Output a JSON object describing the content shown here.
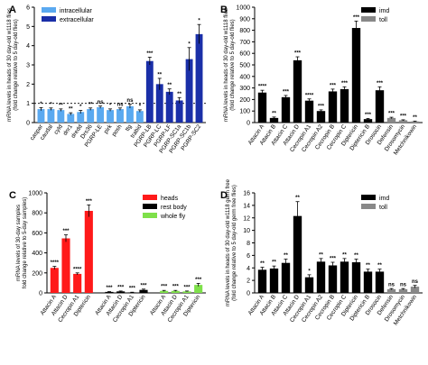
{
  "chart_data": [
    {
      "panel": "A",
      "type": "bar",
      "ylabel": "mRNA levels in heads of 30 day-old w1118 flies",
      "ylabel2": "(fold change relative to 5 day-old flies)",
      "ylim": [
        0,
        6
      ],
      "yticks": [
        0,
        1,
        2,
        3,
        4,
        5,
        6
      ],
      "reference_line": 1,
      "legend": {
        "position": "top-left",
        "entries": [
          "intracellular",
          "extracellular"
        ]
      },
      "colors": {
        "intracellular": "#5aa9f0",
        "extracellular": "#1a2fa8"
      },
      "categories": [
        "caspar",
        "caudal",
        "cyld",
        "dnr1",
        "dredd",
        "Drs36",
        "PGRP-LE",
        "pirk",
        "posh",
        "ttg",
        "trabid",
        "PGRP-LB",
        "PGRP-LC",
        "PGRP-LF",
        "PGRP-SC1a",
        "PGRP-SC1b",
        "PGRP-SC2"
      ],
      "groups": [
        "intracellular",
        "intracellular",
        "intracellular",
        "intracellular",
        "intracellular",
        "intracellular",
        "intracellular",
        "intracellular",
        "intracellular",
        "intracellular",
        "intracellular",
        "extracellular",
        "extracellular",
        "extracellular",
        "extracellular",
        "extracellular",
        "extracellular"
      ],
      "values": [
        0.7,
        0.7,
        0.65,
        0.45,
        0.55,
        0.7,
        0.8,
        0.65,
        0.7,
        0.85,
        0.6,
        3.2,
        2.0,
        1.6,
        1.15,
        3.3,
        4.6
      ],
      "errors": [
        0.08,
        0.06,
        0.06,
        0.06,
        0.08,
        0.06,
        0.06,
        0.06,
        0.06,
        0.1,
        0.06,
        0.2,
        0.3,
        0.15,
        0.15,
        0.6,
        0.5
      ],
      "annotations": [
        "*",
        "*",
        "**",
        "**",
        "*",
        "**",
        "ns",
        "*",
        "ns",
        "ns",
        "*",
        "***",
        "**",
        "**",
        "**",
        "*",
        "*"
      ]
    },
    {
      "panel": "B",
      "type": "bar",
      "ylabel": "mRNA levels in heads of 30 day-old w1118 flies",
      "ylabel2": "(fold change relative to 5 day-old flies)",
      "ylim": [
        0,
        1000
      ],
      "yticks": [
        0,
        100,
        200,
        300,
        400,
        500,
        600,
        700,
        800,
        900,
        1000
      ],
      "legend": {
        "position": "top-right",
        "entries": [
          "imd",
          "toll"
        ]
      },
      "colors": {
        "imd": "#000000",
        "toll": "#888888"
      },
      "categories": [
        "Attacin A",
        "Attacin B",
        "Attacin C",
        "Attacin D",
        "Cecropin A1",
        "Cecropin A2",
        "Cecropin B",
        "Cecropin C",
        "Diptericin",
        "Diptericin B",
        "Drosocin",
        "Defensin",
        "Drosomycin",
        "Metchnikowin"
      ],
      "groups": [
        "imd",
        "imd",
        "imd",
        "imd",
        "imd",
        "imd",
        "imd",
        "imd",
        "imd",
        "imd",
        "imd",
        "toll",
        "toll",
        "toll"
      ],
      "values": [
        260,
        40,
        220,
        540,
        190,
        100,
        270,
        290,
        820,
        30,
        280,
        40,
        20,
        10
      ],
      "errors": [
        20,
        8,
        15,
        30,
        15,
        10,
        20,
        20,
        60,
        6,
        30,
        6,
        4,
        3
      ],
      "annotations": [
        "****",
        "**",
        "***",
        "***",
        "****",
        "***",
        "***",
        "***",
        "***",
        "***",
        "***",
        "***",
        "***",
        "**"
      ]
    },
    {
      "panel": "C",
      "type": "bar",
      "ylabel": "mRNA levels of 30-day samples",
      "ylabel2": "fold change relative to 5-day samples)",
      "ylim": [
        0,
        1000
      ],
      "yticks": [
        0,
        200,
        400,
        600,
        800,
        1000
      ],
      "legend": {
        "position": "top-right",
        "entries": [
          "heads",
          "rest body",
          "whole fly"
        ]
      },
      "colors": {
        "heads": "#ff1a1a",
        "rest body": "#000000",
        "whole fly": "#7ee04a"
      },
      "categories": [
        "Attacin A",
        "Attacin D",
        "Cecropin A1",
        "Diptericin",
        "Attacin A",
        "Attacin D",
        "Cecropin A1",
        "Diptericin",
        "Attacin A",
        "Attacin D",
        "Cecropin A1",
        "Diptericin"
      ],
      "groups": [
        "heads",
        "heads",
        "heads",
        "heads",
        "rest body",
        "rest body",
        "rest body",
        "rest body",
        "whole fly",
        "whole fly",
        "whole fly",
        "whole fly"
      ],
      "values": [
        250,
        545,
        190,
        820,
        10,
        15,
        5,
        30,
        20,
        20,
        15,
        80
      ],
      "errors": [
        15,
        35,
        10,
        60,
        3,
        4,
        2,
        8,
        5,
        5,
        4,
        15
      ],
      "annotations": [
        "****",
        "***",
        "****",
        "***",
        "***",
        "***",
        "***",
        "***",
        "***",
        "***",
        "***",
        "***"
      ]
    },
    {
      "panel": "D",
      "type": "bar",
      "ylabel": "mRNA levels in heads of 30 day-old w1118 germ free",
      "ylabel2": "(fold change relative to 5 day-old germ free flies)",
      "ylim": [
        0,
        16
      ],
      "yticks": [
        0,
        2,
        4,
        6,
        8,
        10,
        12,
        14,
        16
      ],
      "legend": {
        "position": "top-right",
        "entries": [
          "imd",
          "toll"
        ]
      },
      "colors": {
        "imd": "#000000",
        "toll": "#888888"
      },
      "categories": [
        "Attacin A",
        "Attacin B",
        "Attacin C",
        "Attacin D",
        "Cecropin A1",
        "Cecropin A2",
        "Cecropin B",
        "Cecropin C",
        "Diptericin",
        "Diptericin B",
        "Drosocin",
        "Defensin",
        "Drosomycin",
        "Metchnikowin"
      ],
      "groups": [
        "imd",
        "imd",
        "imd",
        "imd",
        "imd",
        "imd",
        "imd",
        "imd",
        "imd",
        "imd",
        "imd",
        "toll",
        "toll",
        "toll"
      ],
      "values": [
        3.7,
        3.9,
        4.8,
        12.3,
        2.5,
        5.0,
        4.4,
        5.0,
        4.9,
        3.4,
        3.4,
        0.6,
        0.6,
        1.0
      ],
      "errors": [
        0.4,
        0.4,
        0.6,
        2.3,
        0.4,
        0.5,
        0.5,
        0.5,
        0.5,
        0.4,
        0.4,
        0.1,
        0.1,
        0.2
      ],
      "annotations": [
        "**",
        "**",
        "**",
        "**",
        "*",
        "**",
        "***",
        "**",
        "**",
        "**",
        "**",
        "ns",
        "ns",
        "ns"
      ]
    }
  ]
}
